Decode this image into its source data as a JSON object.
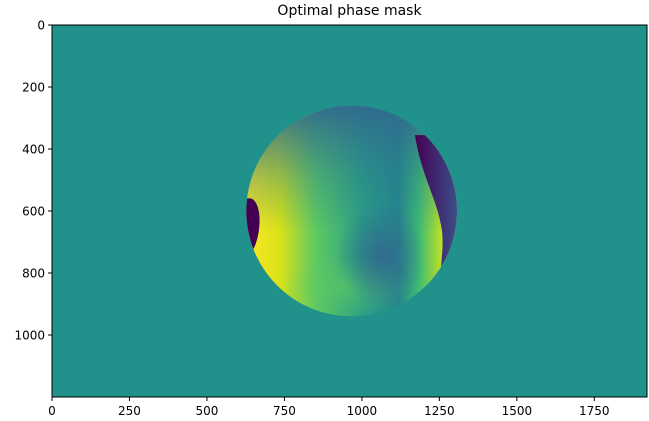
{
  "chart_data": {
    "type": "heatmap",
    "title": "Optimal phase mask",
    "xlabel": "",
    "ylabel": "",
    "xlim": [
      0,
      1920
    ],
    "ylim": [
      1200,
      0
    ],
    "x_ticks": [
      0,
      250,
      500,
      750,
      1000,
      1250,
      1500,
      1750
    ],
    "y_ticks": [
      0,
      200,
      400,
      600,
      800,
      1000
    ],
    "image_width": 1920,
    "image_height": 1200,
    "colormap": "viridis",
    "background_color": "#21918c",
    "aperture": {
      "shape": "circle",
      "center": [
        967,
        600
      ],
      "radius": 340
    },
    "features": [
      {
        "label": "bright-left-band",
        "color": "#fde725"
      },
      {
        "label": "wrap-left-lobe",
        "color": "#440154"
      },
      {
        "label": "wrap-right-crescent",
        "color": "#3b0f70"
      },
      {
        "label": "trough-center",
        "color": "#31688e"
      }
    ],
    "grid": false,
    "legend": "none"
  }
}
